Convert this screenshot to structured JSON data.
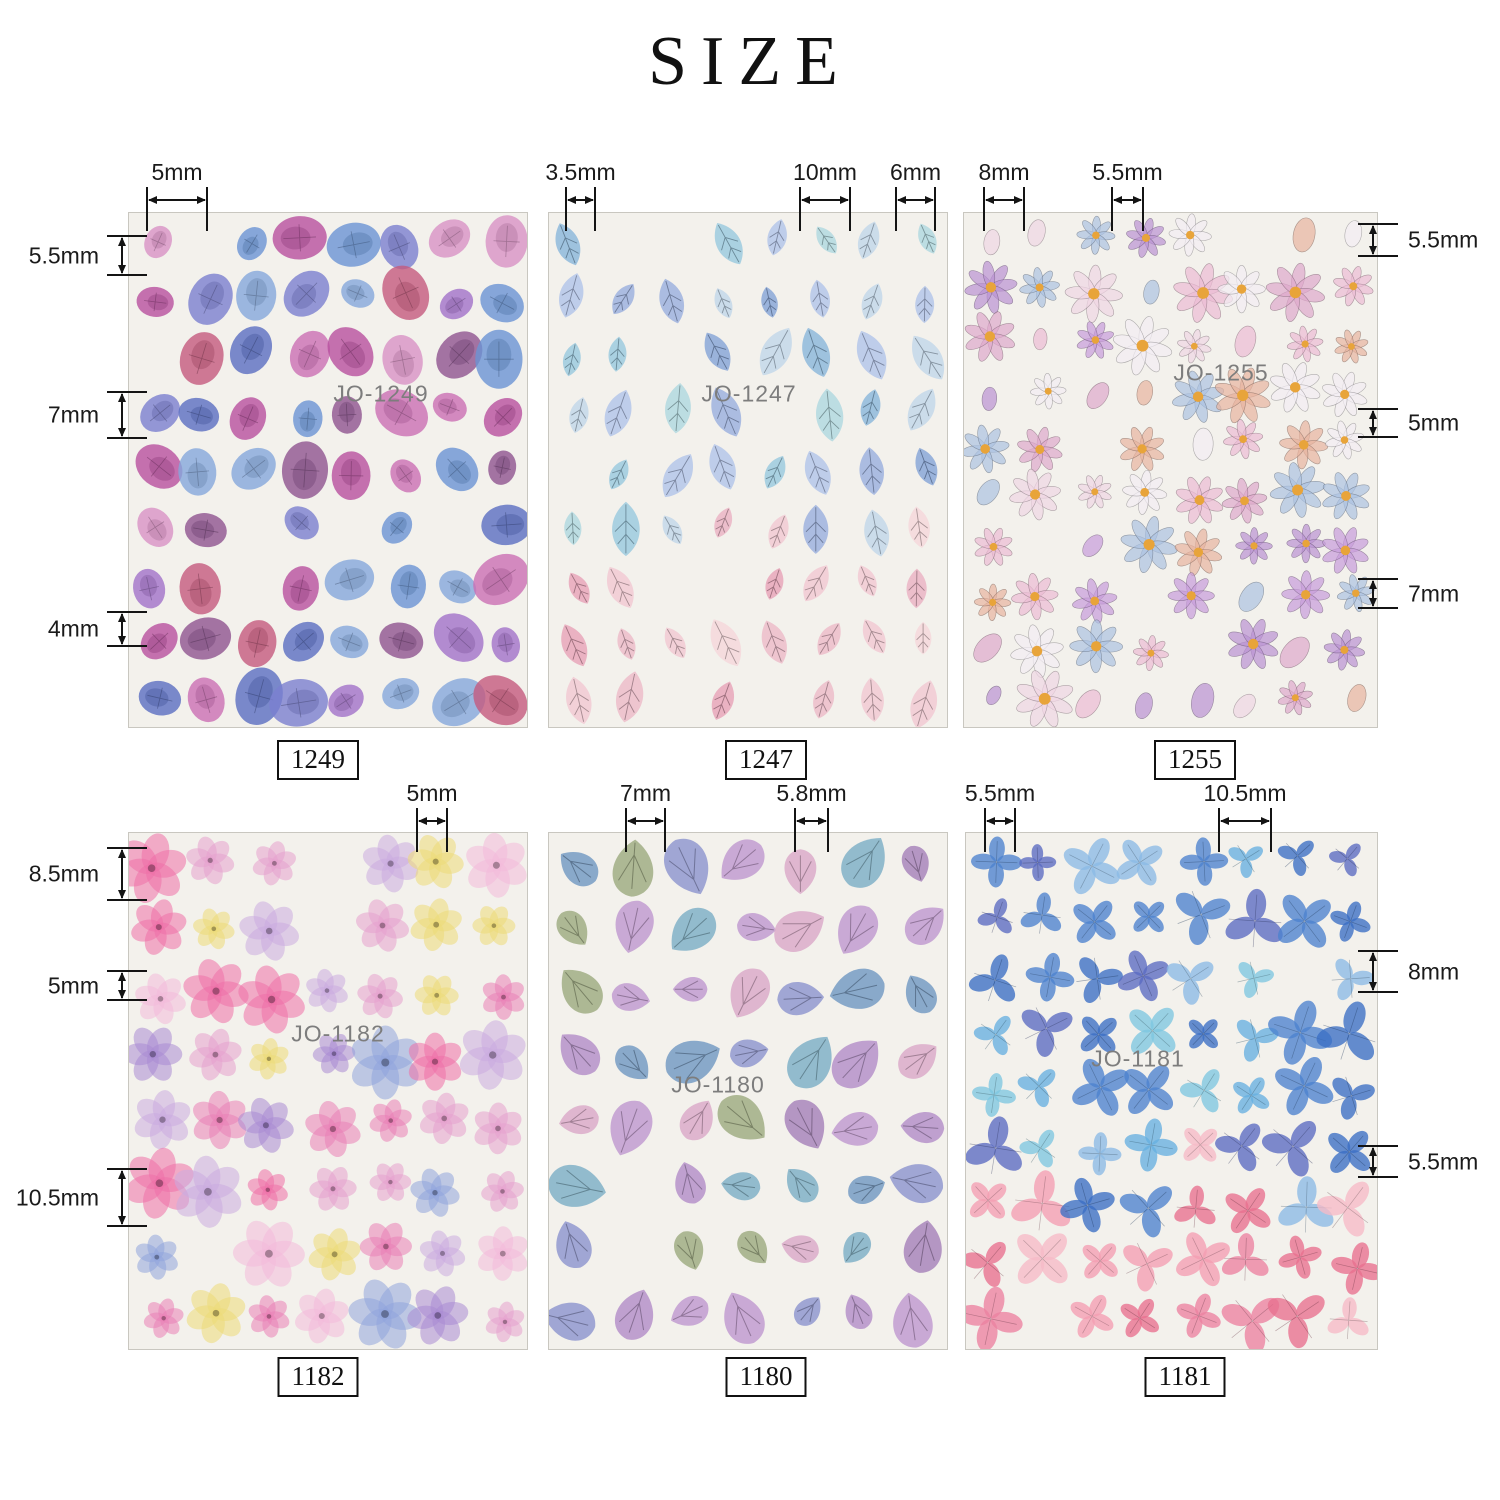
{
  "title": "SIZE",
  "annotation_color": "#141414",
  "sheet_background": "#f3f1ec",
  "sheets": [
    {
      "code": "JO-1249",
      "label": "1249",
      "art": "petal",
      "palette": [
        "#cb6fb4",
        "#a172c9",
        "#7b7fd0",
        "#6a93d4",
        "#b8509f",
        "#8e5490",
        "#d892c6",
        "#84a8dc",
        "#5a6ec2",
        "#c45a7e"
      ],
      "measures": {
        "top": [
          "5mm"
        ],
        "left": [
          "5.5mm",
          "7mm",
          "4mm"
        ],
        "right": []
      }
    },
    {
      "code": "JO-1247",
      "label": "1247",
      "art": "leaf",
      "palette": [
        "#92c5dd",
        "#aad6df",
        "#93aadd",
        "#acc0ea",
        "#82b2da",
        "#bdd4ea",
        "#7c9ed6"
      ],
      "palette_warm": [
        "#f1c4d0",
        "#e9acc0",
        "#f5d4da",
        "#ecb6c6",
        "#e79cb4"
      ],
      "measures": {
        "top": [
          "3.5mm",
          "10mm",
          "6mm"
        ],
        "left": [],
        "right": []
      }
    },
    {
      "code": "JO-1255",
      "label": "1255",
      "art": "daisy",
      "palette": [
        "#ecbcd4",
        "#c89ddb",
        "#adc3e2",
        "#f4eef4",
        "#dfa9cc",
        "#bb93d3",
        "#f0d6e4",
        "#e8b4a0"
      ],
      "center_color": "#e8a43a",
      "measures": {
        "top": [
          "8mm",
          "5.5mm"
        ],
        "left": [],
        "right": [
          "5.5mm",
          "5mm",
          "7mm"
        ]
      }
    },
    {
      "code": "JO-1182",
      "label": "1182",
      "art": "flower",
      "palette": [
        "#a98bd3",
        "#e97fb6",
        "#ecdb79",
        "#90a4dc",
        "#e5a0cd",
        "#f3bada",
        "#cbace0",
        "#ee6fa8"
      ],
      "measures": {
        "top": [
          "5mm"
        ],
        "left": [
          "8.5mm",
          "5mm",
          "10.5mm"
        ],
        "right": []
      }
    },
    {
      "code": "JO-1180",
      "label": "1180",
      "art": "broad",
      "palette": [
        "#8d95ce",
        "#b38ec8",
        "#9dab80",
        "#dba8c8",
        "#7caec6",
        "#a681ba",
        "#7199c2",
        "#c099d0"
      ],
      "measures": {
        "top": [
          "7mm",
          "5.8mm"
        ],
        "left": [],
        "right": []
      }
    },
    {
      "code": "JO-1181",
      "label": "1181",
      "art": "clover",
      "palette": [
        "#66b0e0",
        "#4c82ce",
        "#7ec6e0",
        "#5a6ac2",
        "#8abae6",
        "#3a6ec4"
      ],
      "palette_warm": [
        "#f39eb2",
        "#ec81a0",
        "#f6bac6",
        "#e8708e"
      ],
      "measures": {
        "top": [
          "5.5mm",
          "10.5mm"
        ],
        "left": [],
        "right": [
          "8mm",
          "5.5mm"
        ]
      }
    }
  ]
}
